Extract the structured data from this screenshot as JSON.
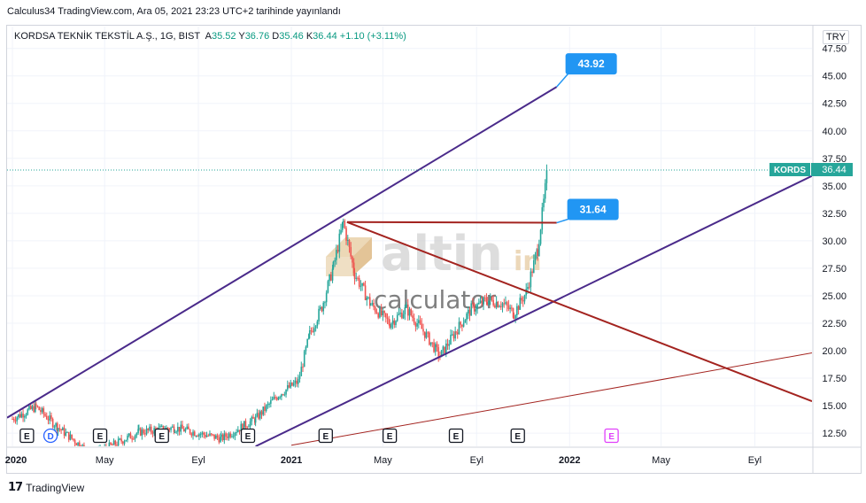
{
  "header": {
    "caption": "Calculus34 TradingView.com, Ara 05, 2021 23:23 UTC+2 tarihinde yayınlandı"
  },
  "legend": {
    "symbol": "KORDSA TEKNİK TEKSTİL A.Ş., 1G, BIST",
    "o_label": "A",
    "o_value": "35.52",
    "h_label": "Y",
    "h_value": "36.76",
    "l_label": "D",
    "l_value": "35.46",
    "c_label": "K",
    "c_value": "36.44",
    "change": "+1.10 (+3.11%)"
  },
  "currency": "TRY",
  "price_tag": {
    "symbol": "KORDS",
    "value": "36.44"
  },
  "annotations": [
    {
      "label": "43.92"
    },
    {
      "label": "31.64"
    }
  ],
  "watermark": {
    "brand": "altin",
    "suffix": "in",
    "sub": "calculator"
  },
  "footer": {
    "brand": "TradingView"
  },
  "colors": {
    "up": "#26a69a",
    "down": "#ef5350",
    "channel": "#4a2a8a",
    "resistance": "#a3231f",
    "callout": "#2196f3"
  },
  "chart_data": {
    "type": "candlestick",
    "title": "KORDSA TEKNİK TEKSTİL A.Ş., 1G, BIST",
    "ylim": [
      11.3,
      48.2
    ],
    "y_ticks": [
      "12.50",
      "15.00",
      "17.50",
      "20.00",
      "22.50",
      "25.00",
      "27.50",
      "30.00",
      "32.50",
      "35.00",
      "37.50",
      "40.00",
      "42.50",
      "45.00",
      "47.50"
    ],
    "y_tick_values": [
      12.5,
      15,
      17.5,
      20,
      22.5,
      25,
      27.5,
      30,
      32.5,
      35,
      37.5,
      40,
      42.5,
      45,
      47.5
    ],
    "x_ticks": [
      "2020",
      "May",
      "Eyl",
      "2021",
      "May",
      "Eyl",
      "2022",
      "May",
      "Eyl"
    ],
    "x_tick_dates": [
      "2020-01-01",
      "2020-05-01",
      "2020-09-01",
      "2021-01-01",
      "2021-05-01",
      "2021-09-01",
      "2022-01-01",
      "2022-05-01",
      "2022-09-01"
    ],
    "x_range": [
      "2019-12-25",
      "2022-11-15"
    ],
    "last_price": 36.44,
    "series": [
      {
        "name": "price",
        "dates": [
          "2020-01-01",
          "2020-02-01",
          "2020-03-01",
          "2020-04-15",
          "2020-06-15",
          "2020-08-01",
          "2020-10-01",
          "2020-11-15",
          "2020-12-15",
          "2021-01-10",
          "2021-01-25",
          "2021-02-10",
          "2021-02-25",
          "2021-03-10",
          "2021-03-25",
          "2021-04-15",
          "2021-05-10",
          "2021-06-01",
          "2021-06-25",
          "2021-07-15",
          "2021-08-05",
          "2021-08-25",
          "2021-09-15",
          "2021-10-05",
          "2021-10-20",
          "2021-11-05",
          "2021-11-20",
          "2021-11-28",
          "2021-12-03"
        ],
        "values": [
          13.8,
          14.9,
          13.0,
          10.5,
          12.6,
          13.0,
          12.0,
          13.8,
          16.0,
          17.2,
          21.5,
          24.0,
          27.6,
          31.7,
          27.0,
          24.2,
          22.5,
          23.8,
          21.6,
          19.5,
          21.8,
          23.8,
          24.6,
          24.3,
          23.4,
          25.3,
          29.2,
          33.5,
          36.44
        ]
      }
    ],
    "events": [
      {
        "date": "2020-01-20",
        "label": "E"
      },
      {
        "date": "2020-02-20",
        "label": "D"
      },
      {
        "date": "2020-04-25",
        "label": "E"
      },
      {
        "date": "2020-07-15",
        "label": "E"
      },
      {
        "date": "2020-11-05",
        "label": "E"
      },
      {
        "date": "2021-02-15",
        "label": "E"
      },
      {
        "date": "2021-05-10",
        "label": "E"
      },
      {
        "date": "2021-08-05",
        "label": "E"
      },
      {
        "date": "2021-10-25",
        "label": "E"
      },
      {
        "date": "2022-02-25",
        "label": "E"
      }
    ],
    "drawings": [
      {
        "name": "channel-upper-line",
        "kind": "line",
        "from": [
          "2019-12-25",
          13.9
        ],
        "to": [
          "2021-12-15",
          44.0
        ]
      },
      {
        "name": "channel-lower-line",
        "kind": "line",
        "from": [
          "2020-11-15",
          11.3
        ],
        "to": [
          "2022-11-15",
          35.9
        ]
      },
      {
        "name": "descending-resistance-line",
        "kind": "line",
        "from": [
          "2021-03-15",
          31.7
        ],
        "to": [
          "2022-11-15",
          15.4
        ]
      },
      {
        "name": "horizontal-level-line",
        "kind": "line",
        "from": [
          "2021-03-15",
          31.7
        ],
        "to": [
          "2021-12-15",
          31.64
        ]
      },
      {
        "name": "long-trend-line",
        "kind": "line",
        "from": [
          "2021-01-01",
          11.4
        ],
        "to": [
          "2022-11-15",
          19.8
        ]
      }
    ]
  }
}
